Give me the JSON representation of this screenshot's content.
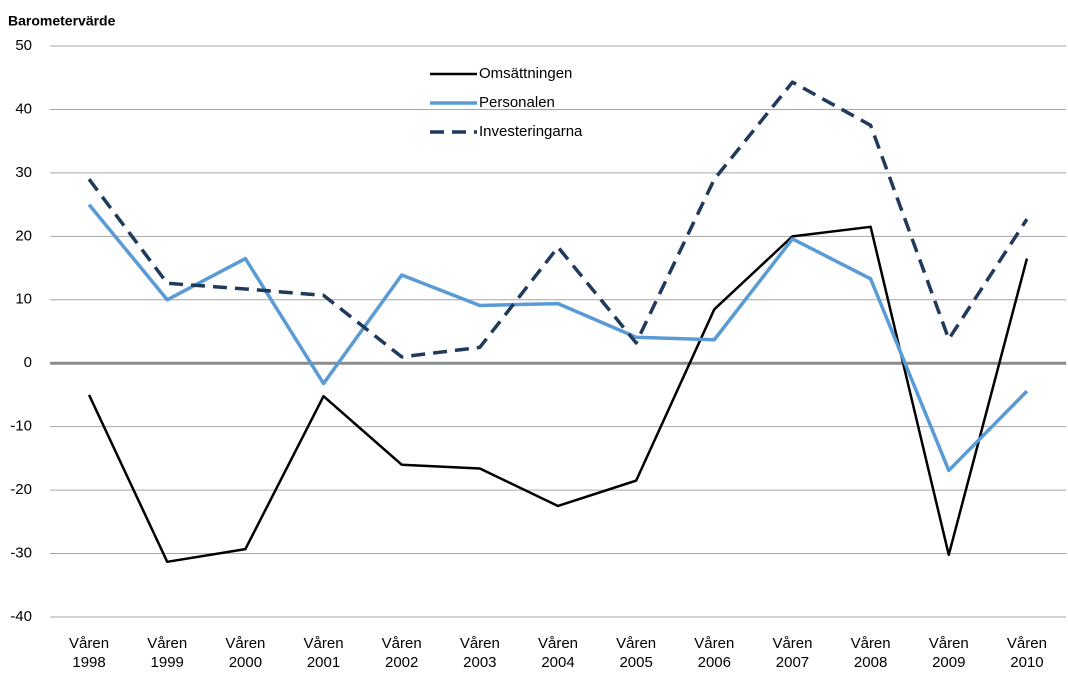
{
  "chart_data": {
    "type": "line",
    "y_label": "Barometervärde",
    "categories": [
      "Våren 1998",
      "Våren 1999",
      "Våren 2000",
      "Våren 2001",
      "Våren 2002",
      "Våren 2003",
      "Våren 2004",
      "Våren 2005",
      "Våren 2006",
      "Våren 2007",
      "Våren 2008",
      "Våren 2009",
      "Våren 2010"
    ],
    "series": [
      {
        "name": "Omsättningen",
        "color": "#000000",
        "dash": false,
        "values": [
          -5,
          -31.3,
          -29.3,
          -5.2,
          -16,
          -16.6,
          -22.5,
          -18.5,
          8.5,
          20,
          21.5,
          -30.2,
          16.5
        ]
      },
      {
        "name": "Personalen",
        "color": "#5b9bd5",
        "dash": false,
        "values": [
          25,
          10,
          16.5,
          -3.2,
          13.9,
          9.1,
          9.4,
          4.1,
          3.7,
          19.6,
          13.3,
          -16.9,
          -4.4
        ]
      },
      {
        "name": "Investeringarna",
        "color": "#1f3a5a",
        "dash": true,
        "values": [
          29,
          12.6,
          11.7,
          10.7,
          1,
          2.5,
          18.3,
          3.2,
          29,
          44.3,
          37.5,
          3.8,
          22.7
        ]
      }
    ],
    "ylim": [
      -40,
      50
    ],
    "yticks": [
      -40,
      -30,
      -20,
      -10,
      0,
      10,
      20,
      30,
      40,
      50
    ],
    "grid": true,
    "legend": "top"
  }
}
